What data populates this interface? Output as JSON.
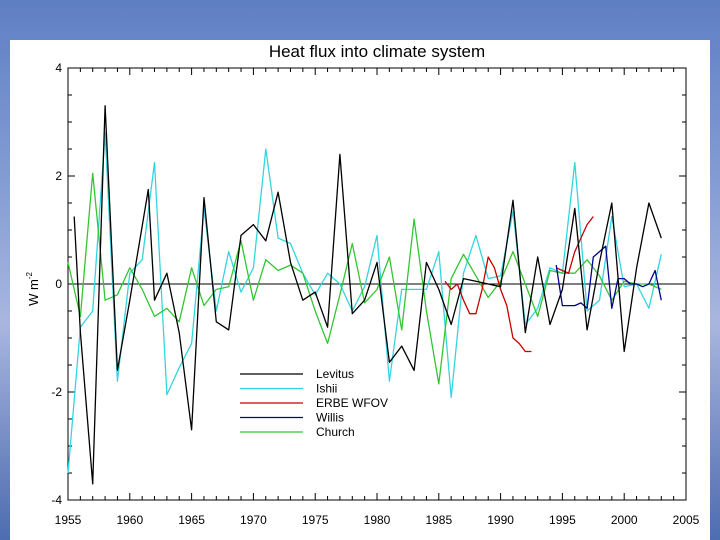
{
  "chart_data": {
    "type": "line",
    "title": "Heat flux into climate system",
    "xlabel": "",
    "ylabel": "W m",
    "ylabel_superscript": "-2",
    "xlim": [
      1955,
      2005
    ],
    "ylim": [
      -4,
      4
    ],
    "xticks": [
      "1955",
      "1960",
      "1965",
      "1970",
      "1975",
      "1980",
      "1985",
      "1990",
      "1995",
      "2000",
      "2005"
    ],
    "yticks": [
      "4",
      "2",
      "0",
      "-2",
      "-4"
    ],
    "zero_line": true,
    "grid": false,
    "legend_position": "lower-left",
    "series": [
      {
        "name": "Levitus",
        "color": "#000000",
        "x": [
          1955.5,
          1956,
          1957,
          1958,
          1959,
          1960,
          1961.5,
          1962,
          1963,
          1964,
          1965,
          1966,
          1967,
          1968,
          1969,
          1970,
          1971,
          1972,
          1973,
          1974,
          1975,
          1976,
          1977,
          1978,
          1979,
          1980,
          1981,
          1982,
          1983,
          1984,
          1985,
          1986,
          1987,
          1988,
          1989,
          1990,
          1991,
          1992,
          1993,
          1994,
          1995,
          1996,
          1997,
          1998,
          1999,
          2000,
          2001,
          2002,
          2003
        ],
        "y": [
          1.25,
          -0.9,
          -3.7,
          3.3,
          -1.6,
          -0.3,
          1.75,
          -0.3,
          0.2,
          -0.9,
          -2.7,
          1.6,
          -0.7,
          -0.85,
          0.9,
          1.1,
          0.8,
          1.7,
          0.4,
          -0.3,
          -0.15,
          -0.8,
          2.4,
          -0.55,
          -0.3,
          0.4,
          -1.45,
          -1.15,
          -1.6,
          0.4,
          -0.1,
          -0.75,
          0.1,
          0.05,
          0.0,
          -0.05,
          1.55,
          -0.9,
          0.5,
          -0.75,
          -0.1,
          1.4,
          -0.85,
          0.4,
          1.5,
          -1.25,
          0.3,
          1.5,
          0.85
        ]
      },
      {
        "name": "Ishii",
        "color": "#33d6e0",
        "x": [
          1955,
          1956,
          1957,
          1958,
          1959,
          1960,
          1961,
          1962,
          1963,
          1964,
          1965,
          1966,
          1967,
          1968,
          1969,
          1970,
          1971,
          1972,
          1973,
          1974,
          1975,
          1976,
          1977,
          1978,
          1979,
          1980,
          1981,
          1982,
          1983,
          1984,
          1985,
          1986,
          1987,
          1988,
          1989,
          1990,
          1991,
          1992,
          1993,
          1994,
          1995,
          1996,
          1997,
          1998,
          1999,
          2000,
          2001,
          2002,
          2003
        ],
        "y": [
          -3.5,
          -0.8,
          -0.5,
          2.8,
          -1.8,
          0.2,
          0.45,
          2.25,
          -2.05,
          -1.55,
          -1.1,
          1.4,
          -0.5,
          0.6,
          -0.15,
          0.3,
          2.5,
          0.85,
          0.75,
          0.2,
          -0.2,
          0.2,
          0.0,
          -0.5,
          -0.05,
          0.9,
          -1.8,
          -0.1,
          -0.1,
          -0.1,
          0.6,
          -2.1,
          0.2,
          0.9,
          0.1,
          0.15,
          1.35,
          -0.75,
          -0.45,
          0.3,
          0.2,
          2.25,
          -0.5,
          -0.3,
          1.25,
          -0.05,
          0.0,
          -0.45,
          0.55
        ]
      },
      {
        "name": "ERBE WFOV",
        "color": "#c80000",
        "x": [
          1985.5,
          1986,
          1986.5,
          1987,
          1987.5,
          1988,
          1988.5,
          1989,
          1989.5,
          1990,
          1990.5,
          1991,
          1991.5,
          1992,
          1992.5
        ],
        "y": [
          0.05,
          -0.1,
          0.0,
          -0.3,
          -0.55,
          -0.55,
          -0.1,
          0.5,
          0.3,
          -0.1,
          -0.4,
          -1.0,
          -1.1,
          -1.25,
          -1.25
        ],
        "x2": [
          1994.5,
          1995,
          1995.5,
          1996,
          1996.5,
          1997,
          1997.5
        ],
        "y2": [
          0.3,
          0.25,
          0.2,
          0.6,
          0.85,
          1.1,
          1.25
        ]
      },
      {
        "name": "Willis",
        "color": "#000090",
        "x": [
          1994.5,
          1995,
          1995.5,
          1996,
          1996.5,
          1997,
          1997.5,
          1998,
          1998.5,
          1999,
          1999.5,
          2000,
          2000.5,
          2001,
          2001.5,
          2002,
          2002.5,
          2003
        ],
        "y": [
          0.35,
          -0.4,
          -0.4,
          -0.4,
          -0.35,
          -0.45,
          0.5,
          0.6,
          0.7,
          -0.45,
          0.1,
          0.1,
          0.0,
          0.0,
          -0.05,
          0.0,
          0.25,
          -0.3
        ]
      },
      {
        "name": "Church",
        "color": "#33c633",
        "x": [
          1955,
          1956,
          1957,
          1958,
          1959,
          1960,
          1961,
          1962,
          1963,
          1964,
          1965,
          1966,
          1967,
          1968,
          1969,
          1970,
          1971,
          1972,
          1973,
          1974,
          1975,
          1976,
          1977,
          1978,
          1979,
          1980,
          1981,
          1982,
          1983,
          1984,
          1985,
          1986,
          1987,
          1988,
          1989,
          1990,
          1991,
          1992,
          1993,
          1994,
          1995,
          1996,
          1997,
          1998,
          1999,
          2000,
          2001,
          2002,
          2003
        ],
        "y": [
          0.4,
          -0.6,
          2.05,
          -0.3,
          -0.2,
          0.3,
          -0.1,
          -0.6,
          -0.45,
          -0.7,
          0.3,
          -0.4,
          -0.1,
          -0.05,
          0.8,
          -0.3,
          0.45,
          0.25,
          0.35,
          0.2,
          -0.5,
          -1.1,
          -0.2,
          0.75,
          -0.35,
          -0.1,
          0.5,
          -0.85,
          1.2,
          -0.5,
          -1.85,
          0.1,
          0.55,
          0.15,
          -0.25,
          0.05,
          0.6,
          0.0,
          -0.6,
          0.25,
          0.2,
          0.2,
          0.45,
          0.15,
          -0.3,
          0.05,
          0.0,
          0.0,
          -0.1
        ]
      }
    ]
  }
}
